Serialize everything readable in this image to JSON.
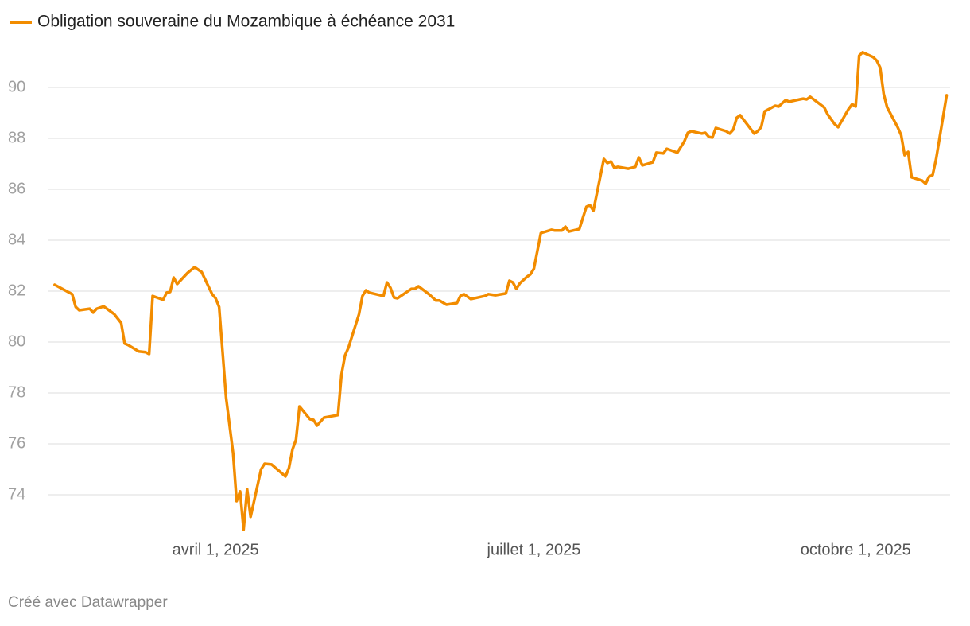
{
  "chart_data": {
    "type": "line",
    "credit": "Créé avec Datawrapper",
    "x": [
      "2025-02-14",
      "2025-02-19",
      "2025-02-20",
      "2025-02-21",
      "2025-02-24",
      "2025-02-25",
      "2025-02-26",
      "2025-02-28",
      "2025-03-03",
      "2025-03-05",
      "2025-03-06",
      "2025-03-07",
      "2025-03-10",
      "2025-03-12",
      "2025-03-13",
      "2025-03-14",
      "2025-03-17",
      "2025-03-18",
      "2025-03-19",
      "2025-03-20",
      "2025-03-21",
      "2025-03-24",
      "2025-03-26",
      "2025-03-28",
      "2025-03-31",
      "2025-04-01",
      "2025-04-02",
      "2025-04-04",
      "2025-04-06",
      "2025-04-07",
      "2025-04-08",
      "2025-04-09",
      "2025-04-10",
      "2025-04-11",
      "2025-04-14",
      "2025-04-15",
      "2025-04-17",
      "2025-04-21",
      "2025-04-22",
      "2025-04-23",
      "2025-04-24",
      "2025-04-25",
      "2025-04-28",
      "2025-04-29",
      "2025-04-30",
      "2025-05-02",
      "2025-05-06",
      "2025-05-07",
      "2025-05-08",
      "2025-05-09",
      "2025-05-12",
      "2025-05-13",
      "2025-05-14",
      "2025-05-15",
      "2025-05-19",
      "2025-05-20",
      "2025-05-21",
      "2025-05-22",
      "2025-05-23",
      "2025-05-27",
      "2025-05-28",
      "2025-05-29",
      "2025-06-01",
      "2025-06-03",
      "2025-06-04",
      "2025-06-06",
      "2025-06-09",
      "2025-06-10",
      "2025-06-11",
      "2025-06-13",
      "2025-06-17",
      "2025-06-18",
      "2025-06-20",
      "2025-06-23",
      "2025-06-24",
      "2025-06-25",
      "2025-06-26",
      "2025-06-27",
      "2025-06-29",
      "2025-06-30",
      "2025-07-01",
      "2025-07-03",
      "2025-07-06",
      "2025-07-07",
      "2025-07-09",
      "2025-07-10",
      "2025-07-11",
      "2025-07-14",
      "2025-07-16",
      "2025-07-17",
      "2025-07-18",
      "2025-07-21",
      "2025-07-22",
      "2025-07-23",
      "2025-07-24",
      "2025-07-25",
      "2025-07-28",
      "2025-07-30",
      "2025-07-31",
      "2025-08-01",
      "2025-08-04",
      "2025-08-05",
      "2025-08-07",
      "2025-08-08",
      "2025-08-11",
      "2025-08-13",
      "2025-08-14",
      "2025-08-15",
      "2025-08-18",
      "2025-08-19",
      "2025-08-20",
      "2025-08-21",
      "2025-08-22",
      "2025-08-25",
      "2025-08-26",
      "2025-08-27",
      "2025-08-28",
      "2025-08-29",
      "2025-09-02",
      "2025-09-03",
      "2025-09-04",
      "2025-09-05",
      "2025-09-08",
      "2025-09-09",
      "2025-09-10",
      "2025-09-11",
      "2025-09-12",
      "2025-09-15",
      "2025-09-16",
      "2025-09-17",
      "2025-09-18",
      "2025-09-19",
      "2025-09-22",
      "2025-09-23",
      "2025-09-24",
      "2025-09-25",
      "2025-09-26",
      "2025-09-29",
      "2025-09-30",
      "2025-10-01",
      "2025-10-02",
      "2025-10-03",
      "2025-10-06",
      "2025-10-07",
      "2025-10-08",
      "2025-10-09",
      "2025-10-10",
      "2025-10-13",
      "2025-10-14",
      "2025-10-15",
      "2025-10-16",
      "2025-10-17",
      "2025-10-20",
      "2025-10-21",
      "2025-10-22",
      "2025-10-23",
      "2025-10-24",
      "2025-10-27"
    ],
    "series": [
      {
        "name": "Obligation souveraine du Mozambique à échéance 2031",
        "color": "#f28c00",
        "values": [
          82.25,
          81.88,
          81.38,
          81.25,
          81.31,
          81.16,
          81.31,
          81.4,
          81.1,
          80.75,
          79.94,
          79.88,
          79.63,
          79.6,
          79.53,
          81.81,
          81.66,
          81.94,
          81.97,
          82.53,
          82.28,
          82.72,
          82.94,
          82.75,
          81.88,
          81.72,
          81.38,
          77.81,
          75.63,
          73.75,
          74.13,
          72.63,
          74.22,
          73.13,
          75.0,
          75.22,
          75.19,
          74.72,
          75.06,
          75.78,
          76.16,
          77.47,
          76.97,
          76.94,
          76.72,
          77.03,
          77.13,
          78.72,
          79.47,
          79.78,
          81.09,
          81.81,
          82.03,
          81.94,
          81.81,
          82.34,
          82.13,
          81.75,
          81.72,
          82.09,
          82.09,
          82.19,
          81.88,
          81.63,
          81.63,
          81.47,
          81.53,
          81.81,
          81.88,
          81.69,
          81.81,
          81.88,
          81.84,
          81.91,
          82.41,
          82.34,
          82.09,
          82.31,
          82.56,
          82.66,
          82.88,
          84.28,
          84.41,
          84.38,
          84.38,
          84.53,
          84.34,
          84.44,
          85.31,
          85.38,
          85.16,
          87.19,
          87.03,
          87.09,
          86.84,
          86.88,
          86.81,
          86.88,
          87.25,
          86.94,
          87.06,
          87.44,
          87.41,
          87.59,
          87.44,
          87.88,
          88.22,
          88.28,
          88.19,
          88.22,
          88.06,
          88.03,
          88.41,
          88.28,
          88.19,
          88.34,
          88.81,
          88.91,
          88.19,
          88.28,
          88.44,
          89.06,
          89.28,
          89.25,
          89.38,
          89.5,
          89.44,
          89.53,
          89.56,
          89.53,
          89.63,
          89.53,
          89.22,
          88.94,
          88.75,
          88.56,
          88.44,
          89.16,
          89.34,
          89.25,
          91.25,
          91.38,
          91.19,
          91.06,
          90.78,
          89.75,
          89.22,
          88.44,
          88.13,
          87.34,
          87.47,
          86.47,
          86.34,
          86.22,
          86.5,
          86.56,
          87.19,
          89.69
        ]
      }
    ],
    "xlim": [
      "2025-02-12",
      "2025-10-28"
    ],
    "xticks": [
      {
        "value": "2025-04-01",
        "label": "avril 1, 2025"
      },
      {
        "value": "2025-07-01",
        "label": "juillet 1, 2025"
      },
      {
        "value": "2025-10-01",
        "label": "octobre 1, 2025"
      }
    ],
    "ylim": [
      72.4,
      91.6
    ],
    "yticks": [
      74,
      76,
      78,
      80,
      82,
      84,
      86,
      88,
      90
    ],
    "grid": true,
    "legend": "top-left"
  }
}
